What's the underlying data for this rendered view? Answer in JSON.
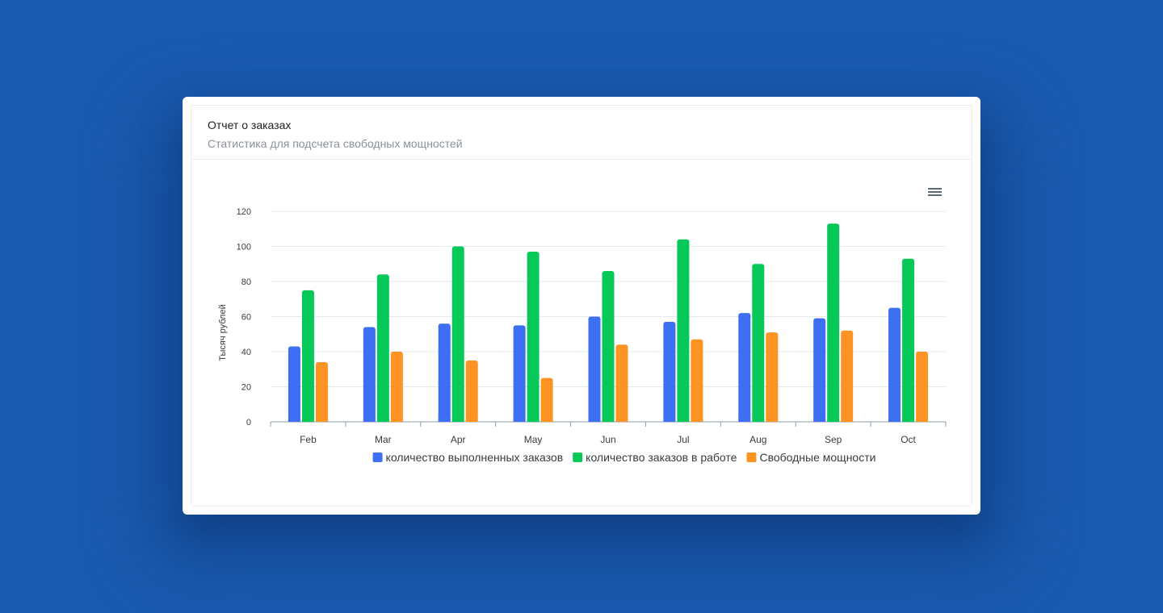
{
  "card": {
    "title": "Отчет о заказах",
    "subtitle": "Статистика для подсчета свободных мощностей"
  },
  "toolbar": {
    "menu_icon": "hamburger-menu-icon"
  },
  "colors": {
    "background": "#1a5bb0",
    "series": [
      "#3d6ff2",
      "#06c95a",
      "#fd9322"
    ],
    "grid": "#e6e9ee",
    "axis": "#8f9cae"
  },
  "chart_data": {
    "type": "bar",
    "ylabel": "Тысяч рублей",
    "xlabel": "",
    "ylim": [
      0,
      120
    ],
    "yticks": [
      0,
      20,
      40,
      60,
      80,
      100,
      120
    ],
    "categories": [
      "Feb",
      "Mar",
      "Apr",
      "May",
      "Jun",
      "Jul",
      "Aug",
      "Sep",
      "Oct"
    ],
    "series": [
      {
        "name": "количество выполненных заказов",
        "values": [
          43,
          54,
          56,
          55,
          60,
          57,
          62,
          59,
          65
        ]
      },
      {
        "name": "количество заказов в работе",
        "values": [
          75,
          84,
          100,
          97,
          86,
          104,
          90,
          113,
          93
        ]
      },
      {
        "name": "Свободные мощности",
        "values": [
          34,
          40,
          35,
          25,
          44,
          47,
          51,
          52,
          40
        ]
      }
    ],
    "grid": true,
    "legend": "bottom-center"
  }
}
